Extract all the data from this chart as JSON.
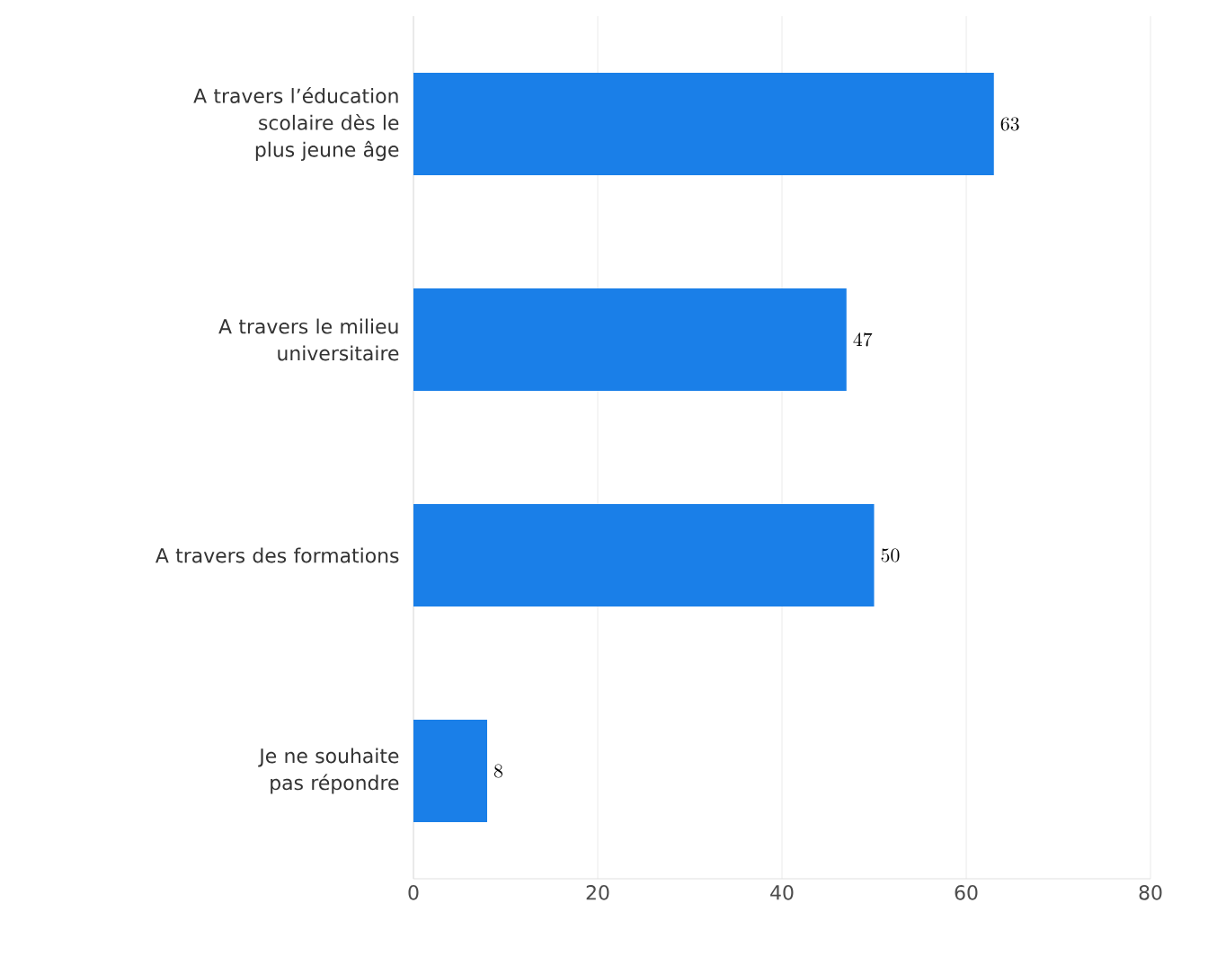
{
  "chart_data": {
    "type": "bar",
    "orientation": "horizontal",
    "categories": [
      "A travers l’éducation scolaire dès le plus jeune âge",
      "A travers le milieu universitaire",
      "A travers des formations",
      "Je ne souhaite pas répondre"
    ],
    "values": [
      63,
      47,
      50,
      8
    ],
    "color": "#1a7fe8",
    "xlim": [
      0,
      80
    ],
    "xticks": [
      0,
      20,
      40,
      60,
      80
    ],
    "grid": "x",
    "data_labels": true
  }
}
